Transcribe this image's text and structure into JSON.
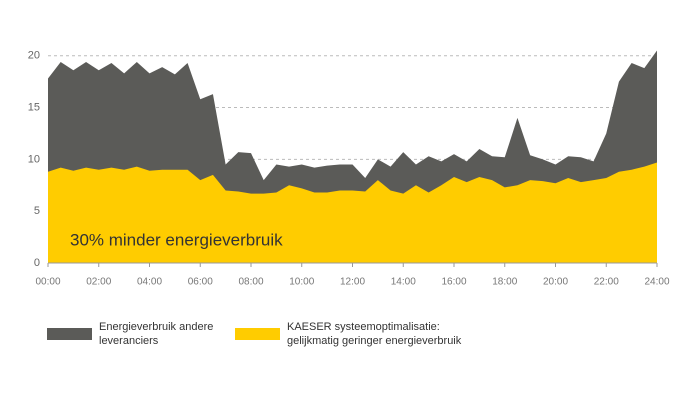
{
  "chart_data": {
    "type": "area",
    "annotation": "30% minder energieverbruik",
    "x": [
      0,
      0.5,
      1,
      1.5,
      2,
      2.5,
      3,
      3.5,
      4,
      4.5,
      5,
      5.5,
      6,
      6.5,
      7,
      7.5,
      8,
      8.5,
      9,
      9.5,
      10,
      10.5,
      11,
      11.5,
      12,
      12.5,
      13,
      13.5,
      14,
      14.5,
      15,
      15.5,
      16,
      16.5,
      17,
      17.5,
      18,
      18.5,
      19,
      19.5,
      20,
      20.5,
      21,
      21.5,
      22,
      22.5,
      23,
      23.5,
      24
    ],
    "series": [
      {
        "name": "Energieverbruik andere leveranciers",
        "color": "#5b5b58",
        "values": [
          17.8,
          19.4,
          18.6,
          19.4,
          18.6,
          19.3,
          18.3,
          19.4,
          18.3,
          18.9,
          18.2,
          19.3,
          15.8,
          16.3,
          9.5,
          10.7,
          10.6,
          8.0,
          9.5,
          9.3,
          9.5,
          9.2,
          9.4,
          9.5,
          9.5,
          8.2,
          10.0,
          9.3,
          10.7,
          9.5,
          10.3,
          9.8,
          10.5,
          9.8,
          11.0,
          10.3,
          10.2,
          14.0,
          10.4,
          10.0,
          9.5,
          10.3,
          10.2,
          9.8,
          12.5,
          17.5,
          19.3,
          18.8,
          20.5
        ]
      },
      {
        "name": "KAESER systeemoptimalisatie: gelijkmatig geringer energieverbruik",
        "color": "#ffcc00",
        "values": [
          8.8,
          9.2,
          8.9,
          9.2,
          9.0,
          9.2,
          9.0,
          9.3,
          8.9,
          9.0,
          9.0,
          9.0,
          8.0,
          8.5,
          7.0,
          6.9,
          6.7,
          6.7,
          6.8,
          7.5,
          7.2,
          6.8,
          6.8,
          7.0,
          7.0,
          6.9,
          8.0,
          7.0,
          6.7,
          7.5,
          6.8,
          7.5,
          8.3,
          7.8,
          8.3,
          8.0,
          7.3,
          7.5,
          8.0,
          7.9,
          7.7,
          8.2,
          7.8,
          8.0,
          8.2,
          8.8,
          9.0,
          9.3,
          9.7
        ]
      }
    ],
    "xlim": [
      0,
      24
    ],
    "xticks": [
      {
        "value": 0,
        "label": "00:00"
      },
      {
        "value": 2,
        "label": "02:00"
      },
      {
        "value": 4,
        "label": "04:00"
      },
      {
        "value": 6,
        "label": "06:00"
      },
      {
        "value": 8,
        "label": "08:00"
      },
      {
        "value": 10,
        "label": "10:00"
      },
      {
        "value": 12,
        "label": "12:00"
      },
      {
        "value": 14,
        "label": "14:00"
      },
      {
        "value": 16,
        "label": "16:00"
      },
      {
        "value": 18,
        "label": "18:00"
      },
      {
        "value": 20,
        "label": "20:00"
      },
      {
        "value": 22,
        "label": "22:00"
      },
      {
        "value": 24,
        "label": "24:00"
      }
    ],
    "ylim": [
      0,
      22
    ],
    "yticks": [
      0,
      5,
      10,
      15,
      20
    ],
    "grid": true
  }
}
